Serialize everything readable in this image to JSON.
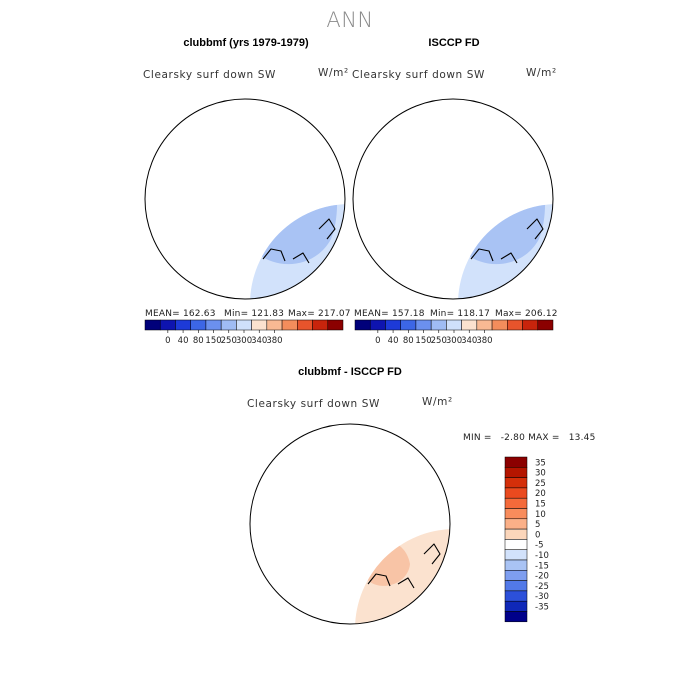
{
  "page_title": "ANN",
  "chart_data": [
    {
      "type": "heatmap",
      "projection": "north-polar-stereographic",
      "title": "clubbmf (yrs 1979-1979)",
      "variable_label": "Clearsky surf down SW",
      "units_label": "W/m²",
      "stats": {
        "mean": "162.63",
        "min": "121.83",
        "max": "217.07"
      },
      "stats_text": {
        "mean": "MEAN= 162.63",
        "min": "Min= 121.83",
        "max": "Max= 217.07"
      },
      "colorbar_ticks": [
        "0",
        "40",
        "80",
        "150",
        "250",
        "300",
        "340",
        "380"
      ],
      "colorbar_colors": [
        "#00007a",
        "#0e14b0",
        "#1d3ad8",
        "#3c66e6",
        "#6b90ee",
        "#9fbcf4",
        "#cfe0fb",
        "#fbe2cf",
        "#f8b993",
        "#f38d5c",
        "#e8542c",
        "#c8240c",
        "#8b0000"
      ],
      "pole_hole": false
    },
    {
      "type": "heatmap",
      "projection": "north-polar-stereographic",
      "title": "ISCCP FD",
      "variable_label": "Clearsky surf down SW",
      "units_label": "W/m²",
      "stats": {
        "mean": "157.18",
        "min": "118.17",
        "max": "206.12"
      },
      "stats_text": {
        "mean": "MEAN= 157.18",
        "min": "Min= 118.17",
        "max": "Max= 206.12"
      },
      "colorbar_ticks": [
        "0",
        "40",
        "80",
        "150",
        "250",
        "300",
        "340",
        "380"
      ],
      "colorbar_colors": [
        "#00007a",
        "#0e14b0",
        "#1d3ad8",
        "#3c66e6",
        "#6b90ee",
        "#9fbcf4",
        "#cfe0fb",
        "#fbe2cf",
        "#f8b993",
        "#f38d5c",
        "#e8542c",
        "#c8240c",
        "#8b0000"
      ],
      "pole_hole": true
    },
    {
      "type": "heatmap",
      "projection": "north-polar-stereographic",
      "title": "clubbmf - ISCCP FD",
      "variable_label": "Clearsky surf down SW",
      "units_label": "W/m²",
      "stats": {
        "min": "-2.80",
        "max": "13.45"
      },
      "stats_text": "MIN =   -2.80 MAX =   13.45",
      "colorbar_ticks": [
        "35",
        "30",
        "25",
        "20",
        "15",
        "10",
        "5",
        "0",
        "-5",
        "-10",
        "-15",
        "-20",
        "-25",
        "-30",
        "-35"
      ],
      "colorbar_colors": [
        "#8b0000",
        "#b41500",
        "#d42f0a",
        "#ea4a1f",
        "#f46a3a",
        "#f88c5c",
        "#fbb088",
        "#fbd6bb",
        "#ffffff",
        "#d2e2fb",
        "#a9c3f4",
        "#7e9ef0",
        "#5279e8",
        "#2c50da",
        "#0f28b8",
        "#00008a"
      ],
      "pole_hole": true
    }
  ]
}
